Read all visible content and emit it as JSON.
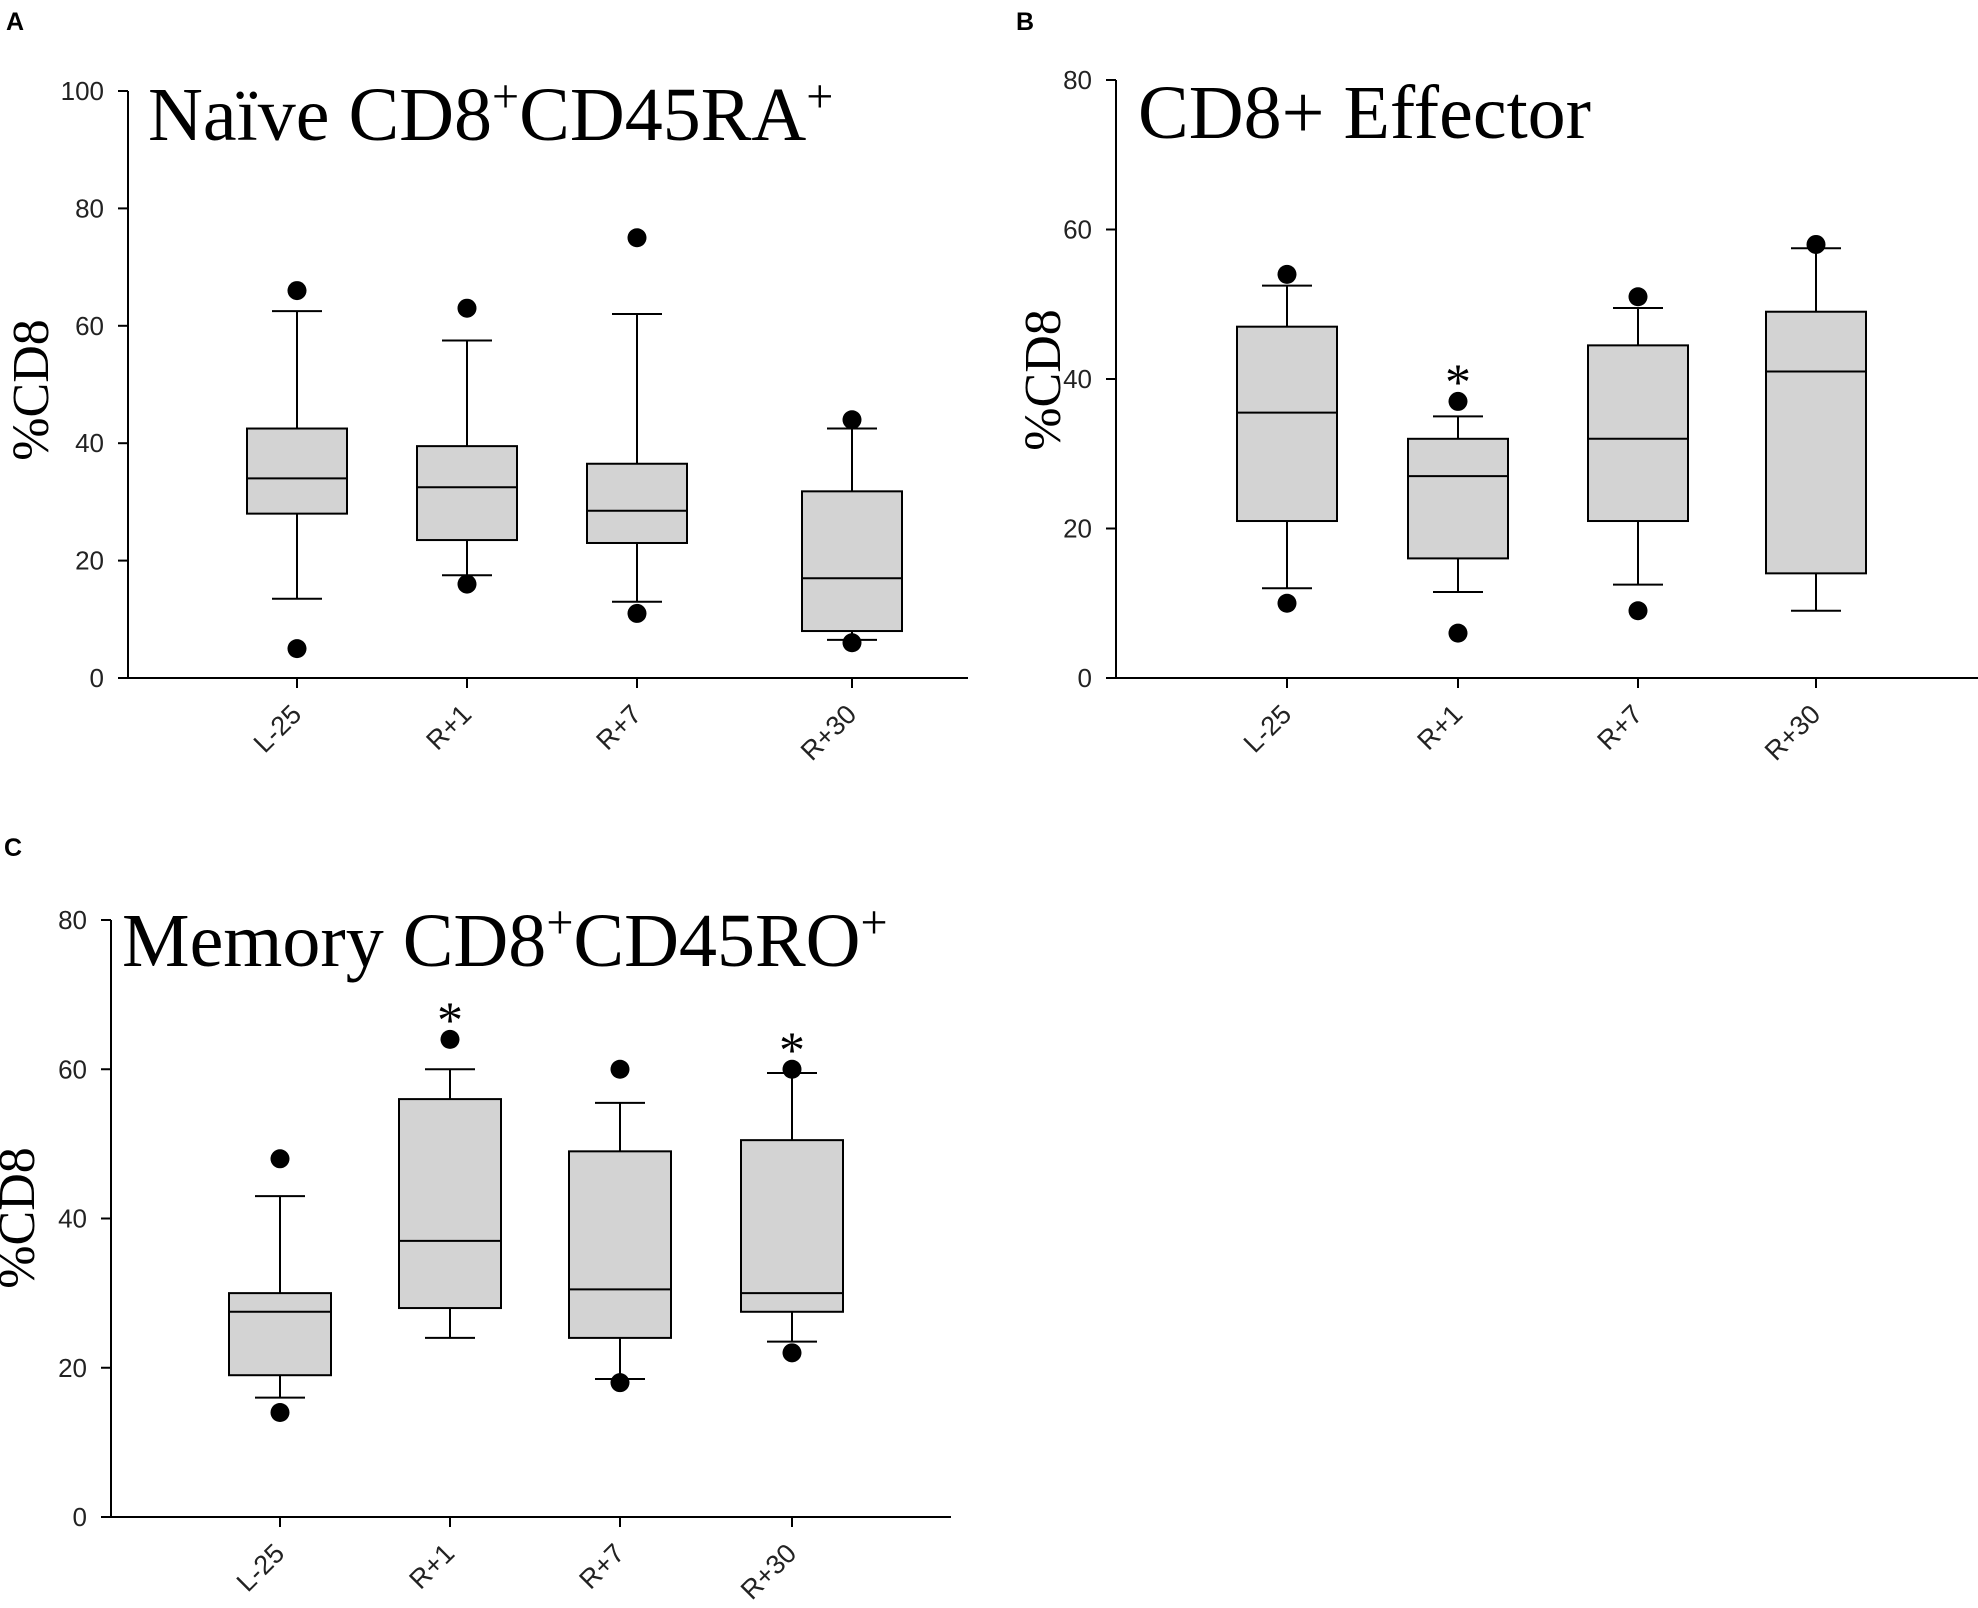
{
  "chart_data": [
    {
      "type": "box",
      "panel": "A",
      "title": "Naïve CD8",
      "title_sup1": "+",
      "title_mid": "CD45RA",
      "title_sup2": "+",
      "ylabel": "%CD8",
      "xlabel": "",
      "ylim": [
        0,
        100
      ],
      "yticks": [
        0,
        20,
        40,
        60,
        80,
        100
      ],
      "categories": [
        "L-25",
        "R+1",
        "R+7",
        "R+30"
      ],
      "boxes": [
        {
          "whisker_low": 13.5,
          "q1": 28,
          "median": 34,
          "q3": 42.5,
          "whisker_high": 62.5,
          "outliers": [
            66,
            5
          ],
          "significant": false
        },
        {
          "whisker_low": 17.5,
          "q1": 23.5,
          "median": 32.5,
          "q3": 39.5,
          "whisker_high": 57.5,
          "outliers": [
            63,
            16
          ],
          "significant": false
        },
        {
          "whisker_low": 13,
          "q1": 23,
          "median": 28.5,
          "q3": 36.5,
          "whisker_high": 62,
          "outliers": [
            75,
            11
          ],
          "significant": false
        },
        {
          "whisker_low": 6.5,
          "q1": 8,
          "median": 17,
          "q3": 31.8,
          "whisker_high": 42.5,
          "outliers": [
            44,
            6
          ],
          "significant": false
        }
      ],
      "significance_marker": "*"
    },
    {
      "type": "box",
      "panel": "B",
      "title": "CD8+ Effector",
      "title_sup1": "",
      "title_mid": "",
      "title_sup2": "",
      "ylabel": "%CD8",
      "xlabel": "",
      "ylim": [
        0,
        80
      ],
      "yticks": [
        0,
        20,
        40,
        60,
        80
      ],
      "categories": [
        "L-25",
        "R+1",
        "R+7",
        "R+30"
      ],
      "boxes": [
        {
          "whisker_low": 12,
          "q1": 21,
          "median": 35.5,
          "q3": 47,
          "whisker_high": 52.5,
          "outliers": [
            54,
            10
          ],
          "significant": false
        },
        {
          "whisker_low": 11.5,
          "q1": 16,
          "median": 27,
          "q3": 32,
          "whisker_high": 35,
          "outliers": [
            37,
            6
          ],
          "significant": true
        },
        {
          "whisker_low": 12.5,
          "q1": 21,
          "median": 32,
          "q3": 44.5,
          "whisker_high": 49.5,
          "outliers": [
            51,
            9
          ],
          "significant": false
        },
        {
          "whisker_low": 9,
          "q1": 14,
          "median": 41,
          "q3": 49,
          "whisker_high": 57.5,
          "outliers": [
            58
          ],
          "significant": false
        }
      ],
      "significance_marker": "*"
    },
    {
      "type": "box",
      "panel": "C",
      "title": "Memory CD8",
      "title_sup1": "+",
      "title_mid": "CD45RO",
      "title_sup2": "+",
      "ylabel": "%CD8",
      "xlabel": "",
      "ylim": [
        0,
        80
      ],
      "yticks": [
        0,
        20,
        40,
        60,
        80
      ],
      "categories": [
        "L-25",
        "R+1",
        "R+7",
        "R+30"
      ],
      "boxes": [
        {
          "whisker_low": 16,
          "q1": 19,
          "median": 27.5,
          "q3": 30,
          "whisker_high": 43,
          "outliers": [
            48,
            14
          ],
          "significant": false
        },
        {
          "whisker_low": 24,
          "q1": 28,
          "median": 37,
          "q3": 56,
          "whisker_high": 60,
          "outliers": [
            64
          ],
          "significant": true
        },
        {
          "whisker_low": 18.5,
          "q1": 24,
          "median": 30.5,
          "q3": 49,
          "whisker_high": 55.5,
          "outliers": [
            60,
            18
          ],
          "significant": false
        },
        {
          "whisker_low": 23.5,
          "q1": 27.5,
          "median": 30,
          "q3": 50.5,
          "whisker_high": 59.5,
          "outliers": [
            60,
            22
          ],
          "significant": true
        }
      ],
      "significance_marker": "*"
    }
  ]
}
